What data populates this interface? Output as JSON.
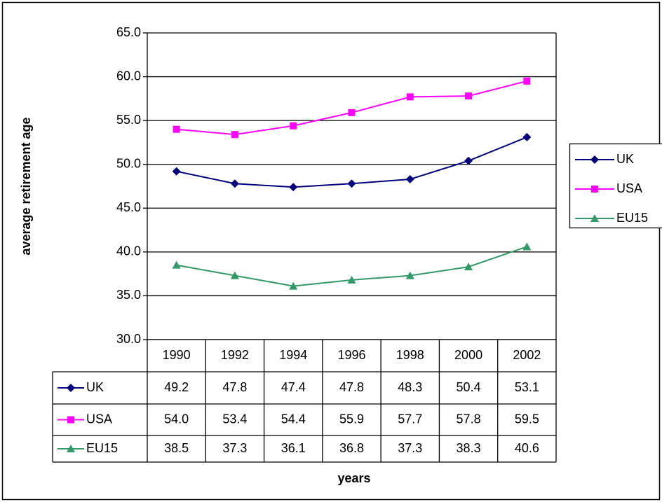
{
  "chart_data": {
    "type": "line",
    "x_label": "years",
    "y_label": "average retirement age",
    "categories": [
      "1990",
      "1992",
      "1994",
      "1996",
      "1998",
      "2000",
      "2002"
    ],
    "series": [
      {
        "name": "UK",
        "color": "#000080",
        "marker": "diamond",
        "values": [
          49.2,
          47.8,
          47.4,
          47.8,
          48.3,
          50.4,
          53.1
        ],
        "value_labels": [
          "49.2",
          "47.8",
          "47.4",
          "47.8",
          "48.3",
          "50.4",
          "53.1"
        ]
      },
      {
        "name": "USA",
        "color": "#ff00ff",
        "marker": "square",
        "values": [
          54.0,
          53.4,
          54.4,
          55.9,
          57.7,
          57.8,
          59.5
        ],
        "value_labels": [
          "54.0",
          "53.4",
          "54.4",
          "55.9",
          "57.7",
          "57.8",
          "59.5"
        ]
      },
      {
        "name": "EU15",
        "color": "#339966",
        "marker": "triangle",
        "values": [
          38.5,
          37.3,
          36.1,
          36.8,
          37.3,
          38.3,
          40.6
        ],
        "value_labels": [
          "38.5",
          "37.3",
          "36.1",
          "36.8",
          "37.3",
          "38.3",
          "40.6"
        ]
      }
    ],
    "ylim": [
      30,
      65
    ],
    "yticks": [
      {
        "value": 30,
        "label": "30.0"
      },
      {
        "value": 35,
        "label": "35.0"
      },
      {
        "value": 40,
        "label": "40.0"
      },
      {
        "value": 45,
        "label": "45.0"
      },
      {
        "value": 50,
        "label": "50.0"
      },
      {
        "value": 55,
        "label": "55.0"
      },
      {
        "value": 60,
        "label": "60.0"
      },
      {
        "value": 65,
        "label": "65.0"
      }
    ],
    "grid": true,
    "legend": "right"
  }
}
